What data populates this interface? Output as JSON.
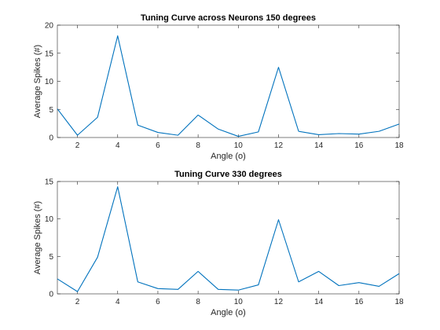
{
  "chart_data": [
    {
      "type": "line",
      "title": "Tuning Curve across Neurons 150 degrees",
      "xlabel": "Angle (o)",
      "ylabel": "Average Spikes (#)",
      "xlim": [
        1,
        18
      ],
      "ylim": [
        0,
        20
      ],
      "xticks": [
        2,
        4,
        6,
        8,
        10,
        12,
        14,
        16,
        18
      ],
      "yticks": [
        0,
        5,
        10,
        15,
        20
      ],
      "grid": false,
      "legend": "none",
      "color": "#0072BD",
      "x": [
        1,
        2,
        3,
        4,
        5,
        6,
        7,
        8,
        9,
        10,
        11,
        12,
        13,
        14,
        15,
        16,
        17,
        18
      ],
      "y": [
        5.1,
        0.4,
        3.6,
        18.1,
        2.2,
        0.9,
        0.4,
        4.0,
        1.5,
        0.2,
        1.0,
        12.5,
        1.1,
        0.5,
        0.7,
        0.6,
        1.1,
        2.4
      ]
    },
    {
      "type": "line",
      "title": "Tuning Curve 330 degrees",
      "xlabel": "Angle (o)",
      "ylabel": "Average Spikes (#)",
      "xlim": [
        1,
        18
      ],
      "ylim": [
        0,
        15
      ],
      "xticks": [
        2,
        4,
        6,
        8,
        10,
        12,
        14,
        16,
        18
      ],
      "yticks": [
        0,
        5,
        10,
        15
      ],
      "grid": false,
      "legend": "none",
      "color": "#0072BD",
      "x": [
        1,
        2,
        3,
        4,
        5,
        6,
        7,
        8,
        9,
        10,
        11,
        12,
        13,
        14,
        15,
        16,
        17,
        18
      ],
      "y": [
        2.0,
        0.3,
        4.9,
        14.3,
        1.6,
        0.7,
        0.6,
        3.0,
        0.6,
        0.5,
        1.2,
        9.9,
        1.6,
        3.0,
        1.1,
        1.5,
        1.0,
        2.7
      ]
    }
  ]
}
